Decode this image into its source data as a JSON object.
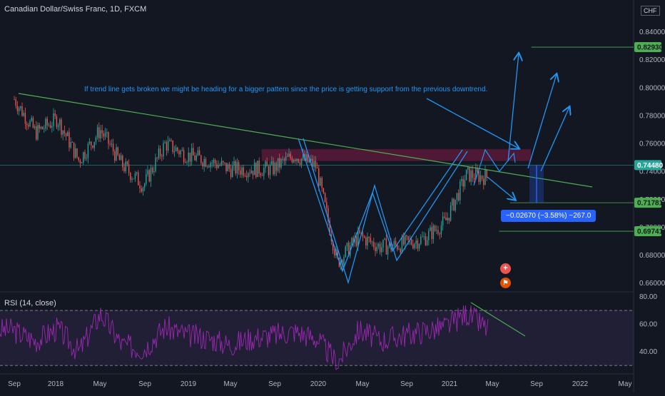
{
  "header": {
    "title": "Canadian Dollar/Swiss Franc, 1D, FXCM",
    "currency": "CHF"
  },
  "rsi": {
    "title": "RSI (14, close)",
    "ticks": [
      "80.00",
      "60.00",
      "40.00"
    ],
    "upper_band": 70,
    "lower_band": 30
  },
  "annotation_text": "If trend line gets broken we might be heading for a bigger pattern since the price is getting support from the previous downtrend.",
  "measure_label": "−0.02670 (−3.58%) −267.0",
  "price_tags": [
    {
      "label": "0.82930",
      "color": "#4caf50",
      "text_color": "#131722"
    },
    {
      "label": "0.74480",
      "color": "#26a69a",
      "text_color": "#ffffff"
    },
    {
      "label": "0.71781",
      "color": "#4caf50",
      "text_color": "#131722"
    },
    {
      "label": "0.69741",
      "color": "#4caf50",
      "text_color": "#131722"
    }
  ],
  "colors": {
    "background": "#131722",
    "up_candle": "#26a69a",
    "down_candle": "#ef5350",
    "trendline": "#4caf50",
    "pattern": "#2196f3",
    "rsi_line": "#9c27b0",
    "resistance_zone": "#e91e63"
  },
  "icons": [
    "plus-circle-icon",
    "flag-icon"
  ],
  "chart_data": [
    {
      "type": "line",
      "title": "Canadian Dollar/Swiss Franc, 1D, FXCM",
      "x_ticks": [
        "Sep",
        "2018",
        "May",
        "Sep",
        "2019",
        "May",
        "Sep",
        "2020",
        "May",
        "Sep",
        "2021",
        "May",
        "Sep",
        "2022",
        "May"
      ],
      "y_ticks": [
        "0.84000",
        "0.82000",
        "0.80000",
        "0.78000",
        "0.76000",
        "0.74000",
        "0.72000",
        "0.70000",
        "0.68000",
        "0.66000"
      ],
      "ylim": [
        0.655,
        0.86
      ],
      "series": [
        {
          "x": [
            "2017-09",
            "2017-11",
            "2018-01",
            "2018-03",
            "2018-05",
            "2018-07",
            "2018-09",
            "2018-11",
            "2019-01",
            "2019-03",
            "2019-05",
            "2019-07",
            "2019-09",
            "2019-11",
            "2020-01",
            "2020-03",
            "2020-05",
            "2020-07",
            "2020-09",
            "2020-11",
            "2021-01",
            "2021-03",
            "2021-05"
          ],
          "values": [
            0.792,
            0.768,
            0.778,
            0.748,
            0.77,
            0.745,
            0.73,
            0.76,
            0.752,
            0.748,
            0.742,
            0.742,
            0.742,
            0.752,
            0.744,
            0.675,
            0.694,
            0.686,
            0.688,
            0.692,
            0.704,
            0.738,
            0.736
          ]
        }
      ],
      "resistance_zone": [
        0.748,
        0.756
      ],
      "horizontal_levels": [
        0.8293,
        0.7448,
        0.71781,
        0.69741
      ]
    },
    {
      "type": "line",
      "title": "RSI (14, close)",
      "y_ticks": [
        "80.00",
        "60.00",
        "40.00"
      ],
      "ylim": [
        26,
        82
      ],
      "bands": [
        30,
        70
      ],
      "series": [
        {
          "x": [
            "2017-09",
            "2017-11",
            "2018-01",
            "2018-03",
            "2018-05",
            "2018-07",
            "2018-09",
            "2018-11",
            "2019-01",
            "2019-03",
            "2019-05",
            "2019-07",
            "2019-09",
            "2019-11",
            "2020-01",
            "2020-03",
            "2020-05",
            "2020-07",
            "2020-09",
            "2020-11",
            "2021-01",
            "2021-03",
            "2021-05"
          ],
          "values": [
            55,
            48,
            57,
            40,
            68,
            45,
            42,
            58,
            52,
            50,
            45,
            50,
            52,
            55,
            50,
            32,
            56,
            48,
            52,
            55,
            58,
            68,
            56
          ]
        }
      ]
    }
  ]
}
